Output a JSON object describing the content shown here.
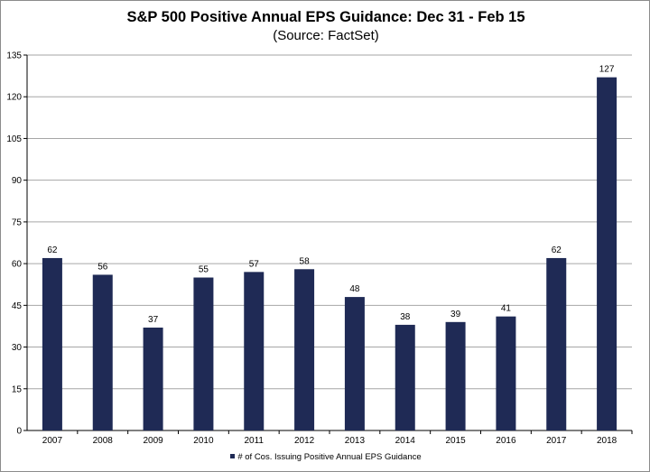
{
  "chart_data": {
    "type": "bar",
    "title": "S&P 500 Positive Annual EPS Guidance: Dec 31 - Feb 15",
    "subtitle": "(Source: FactSet)",
    "categories": [
      "2007",
      "2008",
      "2009",
      "2010",
      "2011",
      "2012",
      "2013",
      "2014",
      "2015",
      "2016",
      "2017",
      "2018"
    ],
    "series": [
      {
        "name": "# of Cos. Issuing Positive Annual EPS Guidance",
        "values": [
          62,
          56,
          37,
          55,
          57,
          58,
          48,
          38,
          39,
          41,
          62,
          127
        ],
        "data_labels": [
          "62",
          "56",
          "37",
          "55",
          "57",
          "58",
          "48",
          "38",
          "39",
          "41",
          "62",
          "127"
        ]
      }
    ],
    "y_ticks": [
      "0",
      "15",
      "30",
      "45",
      "60",
      "75",
      "90",
      "105",
      "120",
      "135"
    ],
    "ylim": [
      0,
      135
    ],
    "grid": "horizontal",
    "legend_position": "bottom",
    "bar_color": "#1f2a55",
    "gridline_color": "#a6a6a6"
  }
}
